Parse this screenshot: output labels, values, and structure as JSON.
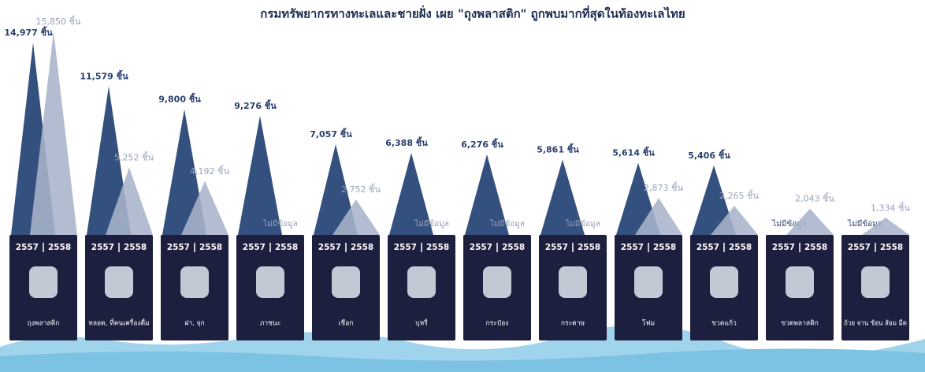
{
  "chart_data": {
    "type": "peak",
    "title": "กรมทรัพยากรทางทะเลและชายฝั่ง เผย \"ถุงพลาสติก\" ถูกพบมากที่สุดในท้องทะเลไทย",
    "categories": [
      "ถุงพลาสติก",
      "หลอด, ที่คนเครื่องดื่ม",
      "ฝา, จุก",
      "ภาชนะ",
      "เชือก",
      "บุหรี่",
      "กระป๋อง",
      "กระดาษ",
      "โฟม",
      "ขวดแก้ว",
      "ขวดพลาสติก",
      "ถ้วย จาน ช้อน ส้อม มีด"
    ],
    "series": [
      {
        "name": "2557",
        "color": "#34507f",
        "values": [
          14977,
          11579,
          9800,
          9276,
          7057,
          6388,
          6276,
          5861,
          5614,
          5406,
          null,
          null
        ],
        "value_labels": [
          "14,977 ชิ้น",
          "11,579 ชิ้น",
          "9,800 ชิ้น",
          "9,276 ชิ้น",
          "7,057 ชิ้น",
          "6,388 ชิ้น",
          "6,276 ชิ้น",
          "5,861 ชิ้น",
          "5,614 ชิ้น",
          "5,406 ชิ้น",
          "ไม่มีข้อมูล",
          "ไม่มีข้อมูล"
        ]
      },
      {
        "name": "2558",
        "color": "#a9b3cb",
        "values": [
          15850,
          5252,
          4192,
          null,
          2752,
          null,
          null,
          null,
          2873,
          2265,
          2043,
          1334
        ],
        "value_labels": [
          "15,850 ชิ้น",
          "5,252 ชิ้น",
          "4,192 ชิ้น",
          "ไม่มีข้อมูล",
          "2,752 ชิ้น",
          "ไม่มีข้อมูล",
          "ไม่มีข้อมูล",
          "ไม่มีข้อมูล",
          "2,873 ชิ้น",
          "2,265 ชิ้น",
          "2,043 ชิ้น",
          "1,334 ชิ้น"
        ]
      }
    ]
  }
}
